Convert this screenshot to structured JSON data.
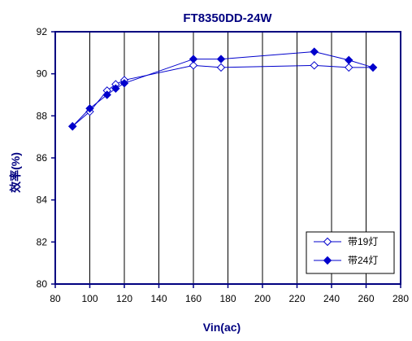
{
  "chart_data": {
    "type": "line",
    "title": "FT8350DD-24W",
    "xlabel": "Vin(ac)",
    "ylabel": "效率(%)",
    "xlim": [
      80,
      280
    ],
    "ylim": [
      80,
      92
    ],
    "xticks": [
      80,
      100,
      120,
      140,
      160,
      180,
      200,
      220,
      240,
      260,
      280
    ],
    "yticks": [
      80,
      82,
      84,
      86,
      88,
      90,
      92
    ],
    "grid": "vertical",
    "legend_position": "bottom-right",
    "series": [
      {
        "name": "带19灯",
        "marker": "diamond-open",
        "color": "#0000cc",
        "x": [
          90,
          100,
          110,
          115,
          120,
          160,
          176,
          230,
          250,
          264
        ],
        "y": [
          87.5,
          88.2,
          89.2,
          89.5,
          89.7,
          90.4,
          90.3,
          90.4,
          90.3,
          90.3
        ]
      },
      {
        "name": "带24灯",
        "marker": "diamond-filled",
        "color": "#0000cc",
        "x": [
          90,
          100,
          110,
          115,
          120,
          160,
          176,
          230,
          250,
          264
        ],
        "y": [
          87.5,
          88.35,
          89.0,
          89.3,
          89.55,
          90.7,
          90.7,
          91.05,
          90.65,
          90.3
        ]
      }
    ]
  }
}
